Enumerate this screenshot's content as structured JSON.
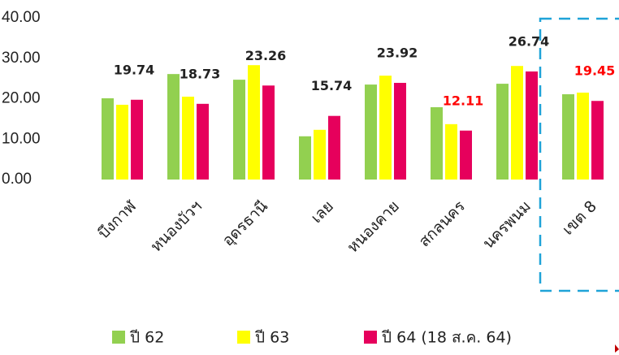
{
  "chart_data": {
    "type": "bar",
    "categories": [
      "บึงกาฬ",
      "หนองบัวฯ",
      "อุดรธานี",
      "เลย",
      "หนองคาย",
      "สกลนคร",
      "นครพนม",
      "เขต 8"
    ],
    "series": [
      {
        "name": "ปี 62",
        "color": "#92d050",
        "values": [
          20.1,
          26.1,
          24.7,
          10.7,
          23.5,
          17.9,
          23.7,
          21.1
        ]
      },
      {
        "name": "ปี 63",
        "color": "#ffff00",
        "values": [
          18.5,
          20.5,
          28.3,
          12.3,
          25.7,
          13.7,
          28.1,
          21.5
        ]
      },
      {
        "name": "ปี 64 (18 ส.ค. 64)",
        "color": "#e6005c",
        "values": [
          19.74,
          18.73,
          23.26,
          15.74,
          23.92,
          12.11,
          26.74,
          19.45
        ],
        "value_label_colors": [
          "#222",
          "#222",
          "#222",
          "#222",
          "#222",
          "#ff0000",
          "#222",
          "#ff0000"
        ]
      }
    ],
    "ylim": [
      0,
      40
    ],
    "yticks": [
      {
        "value": 0,
        "label": "0.00"
      },
      {
        "value": 10,
        "label": "10.00"
      },
      {
        "value": 20,
        "label": "20.00"
      },
      {
        "value": 30,
        "label": "30.00"
      },
      {
        "value": 40,
        "label": "40.00"
      }
    ],
    "legend": "bottom"
  }
}
